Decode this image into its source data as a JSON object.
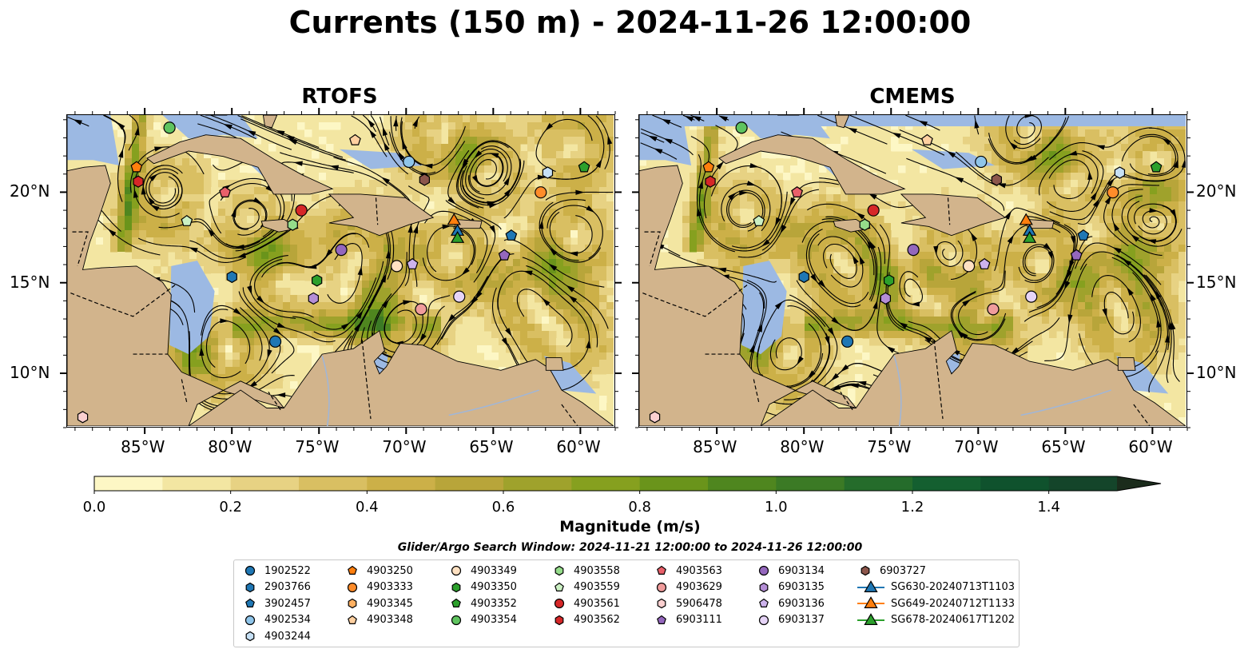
{
  "title": "Currents (150 m) - 2024-11-26 12:00:00",
  "panels": [
    {
      "title": "RTOFS"
    },
    {
      "title": "CMEMS"
    }
  ],
  "axes": {
    "x_ticks": [
      "85°W",
      "80°W",
      "75°W",
      "70°W",
      "65°W",
      "60°W"
    ],
    "x_values": [
      -85,
      -80,
      -75,
      -70,
      -65,
      -60
    ],
    "y_ticks": [
      "20°N",
      "15°N",
      "10°N"
    ],
    "y_values": [
      20,
      15,
      10
    ],
    "lon_range": [
      -89.5,
      -58.0
    ],
    "lat_range": [
      7.0,
      24.3
    ]
  },
  "colorbar": {
    "label": "Magnitude (m/s)",
    "ticks": [
      "0.0",
      "0.2",
      "0.4",
      "0.6",
      "0.8",
      "1.0",
      "1.2",
      "1.4"
    ],
    "tick_values": [
      0.0,
      0.2,
      0.4,
      0.6,
      0.8,
      1.0,
      1.2,
      1.4
    ],
    "range": [
      0.0,
      1.5
    ],
    "extend": "max",
    "colors": [
      "#fdf7c5",
      "#f3e6a2",
      "#e7d283",
      "#d9bf62",
      "#ccb048",
      "#b8a53a",
      "#9fa22c",
      "#86a01f",
      "#6a941b",
      "#4f861f",
      "#3b7a25",
      "#256c2b",
      "#145f30",
      "#0f522d",
      "#14452a",
      "#183825",
      "#1b2c1c"
    ]
  },
  "search_window": "Glider/Argo Search Window: 2024-11-21 12:00:00 to 2024-11-26 12:00:00",
  "colors": {
    "land": "#d2b48c",
    "water_shallow": "#9cb9e3",
    "river": "#9fb6d9"
  },
  "legend": [
    {
      "label": "1902522",
      "marker": "circle",
      "color": "#1f77b4"
    },
    {
      "label": "2903766",
      "marker": "hexagon",
      "color": "#1f77b4"
    },
    {
      "label": "3902457",
      "marker": "pentagon",
      "color": "#1f77b4"
    },
    {
      "label": "4902534",
      "marker": "circle",
      "color": "#8fc5ea"
    },
    {
      "label": "4903244",
      "marker": "hexagon",
      "color": "#c6e0f5"
    },
    {
      "label": "4903250",
      "marker": "pentagon",
      "color": "#ff7f0e"
    },
    {
      "label": "4903333",
      "marker": "circle",
      "color": "#ff8c2a"
    },
    {
      "label": "4903345",
      "marker": "hexagon",
      "color": "#ffb061"
    },
    {
      "label": "4903348",
      "marker": "pentagon",
      "color": "#ffd0a0"
    },
    {
      "label": "4903349",
      "marker": "circle",
      "color": "#ffe1c2"
    },
    {
      "label": "4903350",
      "marker": "hexagon",
      "color": "#2ca02c"
    },
    {
      "label": "4903352",
      "marker": "pentagon",
      "color": "#2ca02c"
    },
    {
      "label": "4903354",
      "marker": "circle",
      "color": "#5fc45f"
    },
    {
      "label": "4903558",
      "marker": "hexagon",
      "color": "#95dc8a"
    },
    {
      "label": "4903559",
      "marker": "pentagon",
      "color": "#cbf0c3"
    },
    {
      "label": "4903561",
      "marker": "circle",
      "color": "#d62728"
    },
    {
      "label": "4903562",
      "marker": "hexagon",
      "color": "#d62728"
    },
    {
      "label": "4903563",
      "marker": "pentagon",
      "color": "#e9606a"
    },
    {
      "label": "4903629",
      "marker": "circle",
      "color": "#f09c9c"
    },
    {
      "label": "5906478",
      "marker": "hexagon",
      "color": "#fbd0d0"
    },
    {
      "label": "6903111",
      "marker": "pentagon",
      "color": "#9467bd"
    },
    {
      "label": "6903134",
      "marker": "circle",
      "color": "#9467bd"
    },
    {
      "label": "6903135",
      "marker": "hexagon",
      "color": "#b48ed6"
    },
    {
      "label": "6903136",
      "marker": "pentagon",
      "color": "#cdb3ec"
    },
    {
      "label": "6903137",
      "marker": "circle",
      "color": "#e6d4f7"
    },
    {
      "label": "6903727",
      "marker": "hexagon",
      "color": "#8c564b"
    },
    {
      "label": "SG630-20240713T1103",
      "marker": "triangle-line",
      "color": "#1f77b4"
    },
    {
      "label": "SG649-20240712T1133",
      "marker": "triangle-line",
      "color": "#ff7f0e"
    },
    {
      "label": "SG678-20240617T1202",
      "marker": "triangle-line",
      "color": "#2ca02c"
    }
  ],
  "markers": [
    {
      "id": "1902522",
      "lon": -77.5,
      "lat": 11.7
    },
    {
      "id": "2903766",
      "lon": -80.0,
      "lat": 15.3
    },
    {
      "id": "3902457",
      "lon": -63.9,
      "lat": 17.6
    },
    {
      "id": "4902534",
      "lon": -69.8,
      "lat": 21.7
    },
    {
      "id": "4903244",
      "lon": -61.8,
      "lat": 21.1
    },
    {
      "id": "4903250",
      "lon": -85.5,
      "lat": 21.4
    },
    {
      "id": "4903333",
      "lon": -62.2,
      "lat": 20.0
    },
    {
      "id": "4903349",
      "lon": -70.5,
      "lat": 15.9
    },
    {
      "id": "4903350",
      "lon": -75.1,
      "lat": 15.1
    },
    {
      "id": "4903352",
      "lon": -59.7,
      "lat": 21.4
    },
    {
      "id": "4903354",
      "lon": -83.6,
      "lat": 23.6
    },
    {
      "id": "4903558",
      "lon": -76.5,
      "lat": 18.2
    },
    {
      "id": "4903559",
      "lon": -82.6,
      "lat": 18.4
    },
    {
      "id": "4903561",
      "lon": -76.0,
      "lat": 19.0
    },
    {
      "id": "4903562",
      "lon": -85.4,
      "lat": 20.6
    },
    {
      "id": "4903563",
      "lon": -80.4,
      "lat": 20.0
    },
    {
      "id": "4903629",
      "lon": -69.1,
      "lat": 13.5
    },
    {
      "id": "4903348",
      "lon": -72.9,
      "lat": 22.9
    },
    {
      "id": "5906478",
      "lon": -88.6,
      "lat": 7.5
    },
    {
      "id": "6903111",
      "lon": -64.3,
      "lat": 16.5
    },
    {
      "id": "6903134",
      "lon": -73.7,
      "lat": 16.8
    },
    {
      "id": "6903135",
      "lon": -75.3,
      "lat": 14.1
    },
    {
      "id": "6903136",
      "lon": -69.6,
      "lat": 16.0
    },
    {
      "id": "6903137",
      "lon": -66.9,
      "lat": 14.2
    },
    {
      "id": "6903727",
      "lon": -68.9,
      "lat": 20.7
    },
    {
      "id": "SG630-20240713T1103",
      "lon": -67.0,
      "lat": 17.9
    },
    {
      "id": "SG649-20240712T1133",
      "lon": -67.2,
      "lat": 18.5
    },
    {
      "id": "SG678-20240617T1202",
      "lon": -67.0,
      "lat": 17.5
    }
  ]
}
